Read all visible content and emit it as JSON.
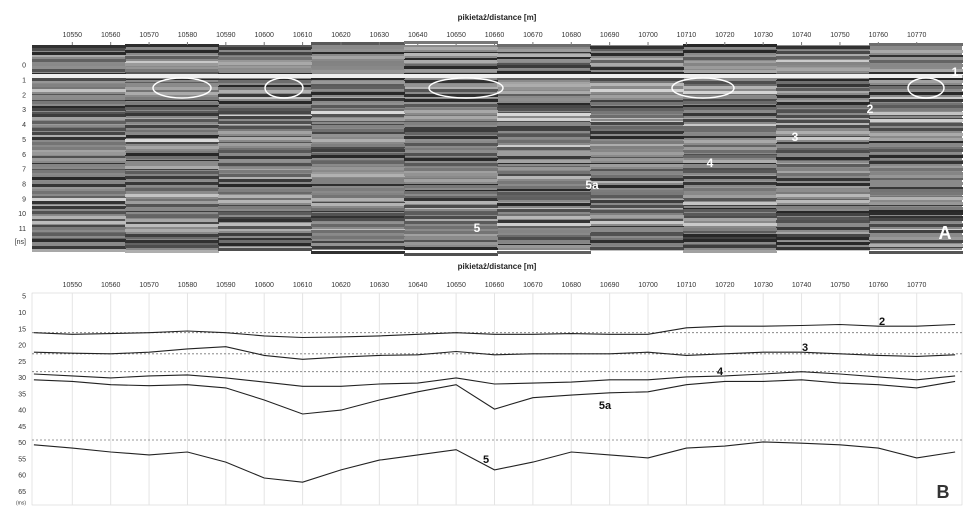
{
  "chart_data": [
    {
      "type": "radargram",
      "title": "pikietaż/distance [m]",
      "ylabel": "[ns]",
      "panel_label": "A",
      "xlim": [
        10539.5,
        10781.8
      ],
      "ylim": [
        -1.4,
        12.4
      ],
      "y_reversed": true,
      "xticks": [
        10550,
        10560,
        10570,
        10580,
        10590,
        10600,
        10610,
        10620,
        10630,
        10640,
        10650,
        10660,
        10670,
        10680,
        10690,
        10700,
        10710,
        10720,
        10730,
        10740,
        10750,
        10760,
        10770
      ],
      "yticks": [
        0,
        1,
        2,
        3,
        4,
        5,
        6,
        7,
        8,
        9,
        10,
        11
      ],
      "annotations": [
        "1",
        "2",
        "3",
        "4",
        "5a",
        "5"
      ]
    },
    {
      "type": "line",
      "title": "pikietaż/distance [m]",
      "ylabel": "(ms)",
      "panel_label": "B",
      "xlim": [
        10539.5,
        10781.8
      ],
      "ylim": [
        3.8,
        69
      ],
      "y_reversed": true,
      "grid": "x",
      "xticks": [
        10550,
        10560,
        10570,
        10580,
        10590,
        10600,
        10610,
        10620,
        10630,
        10640,
        10650,
        10660,
        10670,
        10680,
        10690,
        10700,
        10710,
        10720,
        10730,
        10740,
        10750,
        10760,
        10770
      ],
      "yticks": [
        5,
        10,
        15,
        20,
        25,
        30,
        35,
        40,
        45,
        50,
        55,
        60,
        65
      ],
      "reference_lines": [
        16,
        22.5,
        28,
        49
      ],
      "x": [
        10540,
        10550,
        10560,
        10570,
        10580,
        10590,
        10600,
        10610,
        10620,
        10630,
        10640,
        10650,
        10660,
        10670,
        10680,
        10690,
        10700,
        10710,
        10720,
        10730,
        10740,
        10750,
        10760,
        10770,
        10780
      ],
      "series": [
        {
          "name": "2",
          "color": "#222",
          "values": [
            16,
            16.5,
            16.3,
            16,
            15.5,
            16,
            17,
            17.5,
            17.3,
            17,
            16.5,
            16,
            16.5,
            16.5,
            16.3,
            16.5,
            16.5,
            14.5,
            14,
            14,
            13.8,
            13.5,
            14,
            14,
            13.5
          ]
        },
        {
          "name": "3",
          "color": "#222",
          "values": [
            22,
            22.3,
            22.5,
            22,
            21,
            20.3,
            23,
            24.2,
            23.5,
            23,
            22.8,
            21.8,
            22.8,
            22.5,
            22.5,
            22.5,
            22,
            23,
            22.5,
            22,
            22,
            22.5,
            23,
            23.3,
            22.8
          ]
        },
        {
          "name": "4",
          "color": "#222",
          "values": [
            28.7,
            29.3,
            29.9,
            29.3,
            29,
            29.9,
            31.2,
            32.5,
            32.5,
            31.8,
            31.5,
            29.9,
            31.8,
            31.5,
            31.2,
            30.5,
            30.5,
            29.6,
            29.3,
            28.7,
            28,
            28.7,
            29.6,
            30.5,
            29.3
          ]
        },
        {
          "name": "5a",
          "color": "#222",
          "values": [
            30.5,
            31,
            32,
            32.3,
            32,
            33,
            36.7,
            41,
            39.8,
            36.7,
            34.2,
            32,
            39.5,
            36,
            35.2,
            34.5,
            34.2,
            32,
            31,
            31,
            30.5,
            31.5,
            32,
            33,
            31
          ]
        },
        {
          "name": "5",
          "color": "#222",
          "values": [
            50.5,
            51.5,
            52.7,
            53.6,
            52.7,
            55.8,
            60.7,
            62,
            58.2,
            55.2,
            53.6,
            52,
            58.2,
            55.8,
            52.7,
            53.6,
            54.5,
            51.5,
            50.9,
            49.6,
            50,
            50.5,
            51.5,
            54.5,
            52.7
          ]
        }
      ]
    }
  ]
}
